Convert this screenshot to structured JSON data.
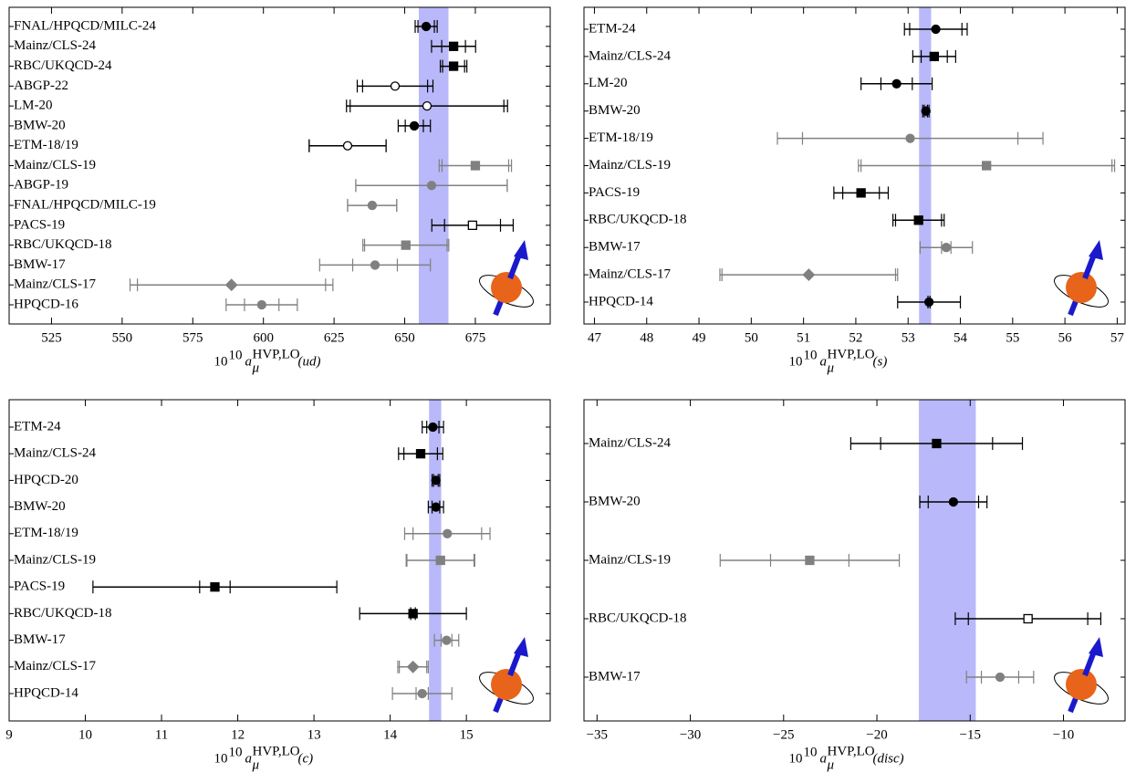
{
  "chart_data": [
    {
      "type": "forest",
      "categories": [
        "FNAL/HPQCD/MILC-24",
        "Mainz/CLS-24",
        "RBC/UKQCD-24",
        "ABGP-22",
        "LM-20",
        "BMW-20",
        "ETM-18/19",
        "Mainz/CLS-19",
        "ABGP-19",
        "FNAL/HPQCD/MILC-19",
        "PACS-19",
        "RBC/UKQCD-18",
        "BMW-17",
        "Mainz/CLS-17",
        "HPQCD-16"
      ],
      "values": [
        657.6,
        667.3,
        667.3,
        646.6,
        657.9,
        653.4,
        629.8,
        675.0,
        659.5,
        638.5,
        674.0,
        650.4,
        639.5,
        588.7,
        599.4
      ],
      "errors": [
        3.9,
        7.8,
        4.7,
        13.4,
        28.5,
        5.7,
        13.6,
        12.8,
        26.8,
        8.7,
        14.4,
        15.2,
        19.6,
        35.9,
        12.6
      ],
      "errors_inner": [
        2.9,
        4.2,
        3.9,
        11.5,
        27.2,
        3.2,
        13.6,
        11.8,
        26.8,
        8.7,
        9.9,
        14.6,
        7.9,
        33.3,
        6.1
      ],
      "markers": [
        "circle",
        "square",
        "square",
        "circle",
        "circle",
        "circle",
        "circle",
        "square",
        "circle",
        "circle",
        "square",
        "square",
        "circle",
        "diamond",
        "circle"
      ],
      "filled": [
        true,
        true,
        true,
        false,
        false,
        true,
        false,
        true,
        true,
        true,
        false,
        true,
        true,
        true,
        true
      ],
      "colors": [
        "#000000",
        "#000000",
        "#000000",
        "#000000",
        "#000000",
        "#000000",
        "#000000",
        "#808080",
        "#808080",
        "#808080",
        "#000000",
        "#808080",
        "#808080",
        "#808080",
        "#808080"
      ],
      "xlim": [
        510,
        701.5
      ],
      "xticks": [
        525,
        550,
        575,
        600,
        625,
        650,
        675
      ],
      "band": [
        655,
        665.5
      ],
      "band_color": "#b8b8fa",
      "xlabel": [
        "10",
        "10",
        "a",
        "μ",
        "HVP,LO",
        "(ud)"
      ]
    },
    {
      "type": "forest",
      "categories": [
        "ETM-24",
        "Mainz/CLS-24",
        "LM-20",
        "BMW-20",
        "ETM-18/19",
        "Mainz/CLS-19",
        "PACS-19",
        "RBC/UKQCD-18",
        "BMW-17",
        "Mainz/CLS-17",
        "HPQCD-14"
      ],
      "values": [
        53.53,
        53.5,
        52.78,
        53.34,
        53.04,
        54.5,
        52.1,
        53.2,
        53.73,
        51.1,
        53.4
      ],
      "errors": [
        0.6,
        0.41,
        0.68,
        0.06,
        2.54,
        2.45,
        0.52,
        0.49,
        0.5,
        1.7,
        0.6
      ],
      "errors_inner": [
        0.5,
        0.25,
        0.3,
        0.03,
        2.06,
        2.4,
        0.35,
        0.44,
        0.09,
        1.66,
        0.02
      ],
      "markers": [
        "circle",
        "square",
        "circle",
        "circle",
        "circle",
        "square",
        "square",
        "square",
        "circle",
        "diamond",
        "circle"
      ],
      "filled": [
        true,
        true,
        true,
        true,
        true,
        true,
        true,
        true,
        true,
        true,
        true
      ],
      "colors": [
        "#000000",
        "#000000",
        "#000000",
        "#000000",
        "#808080",
        "#808080",
        "#000000",
        "#000000",
        "#808080",
        "#808080",
        "#000000"
      ],
      "xlim": [
        46.8,
        57.15
      ],
      "xticks": [
        47,
        48,
        49,
        50,
        51,
        52,
        53,
        54,
        55,
        56,
        57
      ],
      "band": [
        53.21,
        53.44
      ],
      "band_color": "#b8b8fa",
      "xlabel": [
        "10",
        "10",
        "a",
        "μ",
        "HVP,LO",
        "(s)"
      ]
    },
    {
      "type": "forest",
      "categories": [
        "ETM-24",
        "Mainz/CLS-24",
        "HPQCD-20",
        "BMW-20",
        "ETM-18/19",
        "Mainz/CLS-19",
        "PACS-19",
        "RBC/UKQCD-18",
        "BMW-17",
        "Mainz/CLS-17",
        "HPQCD-14"
      ],
      "values": [
        14.56,
        14.4,
        14.6,
        14.6,
        14.75,
        14.66,
        11.7,
        14.3,
        14.74,
        14.3,
        14.42
      ],
      "errors": [
        0.14,
        0.29,
        0.05,
        0.1,
        0.56,
        0.45,
        1.6,
        0.7,
        0.16,
        0.2,
        0.39
      ],
      "errors_inner": [
        0.08,
        0.22,
        0.03,
        0.05,
        0.45,
        0.44,
        0.2,
        0.03,
        0.07,
        0.18,
        0.08
      ],
      "markers": [
        "circle",
        "square",
        "circle",
        "circle",
        "circle",
        "square",
        "square",
        "square",
        "circle",
        "diamond",
        "circle"
      ],
      "filled": [
        true,
        true,
        true,
        true,
        true,
        true,
        true,
        true,
        true,
        true,
        true
      ],
      "colors": [
        "#000000",
        "#000000",
        "#000000",
        "#000000",
        "#808080",
        "#808080",
        "#000000",
        "#000000",
        "#808080",
        "#808080",
        "#808080"
      ],
      "xlim": [
        9,
        16.1
      ],
      "xticks": [
        9,
        10,
        11,
        12,
        13,
        14,
        15
      ],
      "band": [
        14.51,
        14.67
      ],
      "band_color": "#b8b8fa",
      "xlabel": [
        "10",
        "10",
        "a",
        "μ",
        "HVP,LO",
        "(c)"
      ]
    },
    {
      "type": "forest",
      "categories": [
        "Mainz/CLS-24",
        "BMW-20",
        "Mainz/CLS-19",
        "RBC/UKQCD-18",
        "BMW-17"
      ],
      "values": [
        -16.8,
        -15.9,
        -23.6,
        -11.9,
        -13.4
      ],
      "errors": [
        4.6,
        1.8,
        4.8,
        3.9,
        1.8
      ],
      "errors_inner": [
        3.0,
        1.35,
        2.1,
        3.2,
        1.0
      ],
      "markers": [
        "square",
        "circle",
        "square",
        "square",
        "circle"
      ],
      "filled": [
        true,
        true,
        true,
        false,
        true
      ],
      "colors": [
        "#000000",
        "#000000",
        "#808080",
        "#000000",
        "#808080"
      ],
      "xlim": [
        -35.7,
        -6.7
      ],
      "xticks": [
        {
          "value": -35,
          "label": "−35"
        },
        {
          "value": -30,
          "label": "−30"
        },
        {
          "value": -25,
          "label": "−25"
        },
        {
          "value": -20,
          "label": "−20"
        },
        {
          "value": -15,
          "label": "−15"
        },
        {
          "value": -10,
          "label": "−10"
        }
      ],
      "band": [
        -17.75,
        -14.7
      ],
      "band_color": "#b8b8fa",
      "xlabel": [
        "10",
        "10",
        "a",
        "μ",
        "HVP,LO",
        "(disc)"
      ]
    }
  ]
}
